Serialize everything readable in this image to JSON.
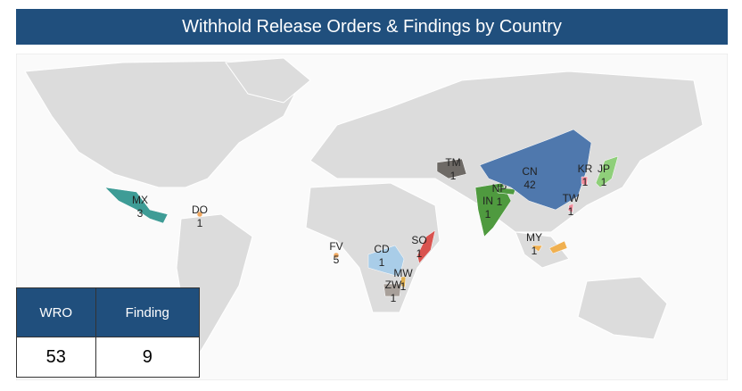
{
  "title": "Withhold Release Orders & Findings by Country",
  "countries": [
    {
      "code": "MX",
      "count": 3,
      "color": "#3e9c96"
    },
    {
      "code": "DO",
      "count": 1,
      "color": "#f0a860"
    },
    {
      "code": "FV",
      "count": 5,
      "color": "#f0a860"
    },
    {
      "code": "CD",
      "count": 1,
      "color": "#a9cde8"
    },
    {
      "code": "MW",
      "count": 1,
      "color": "#e0b050"
    },
    {
      "code": "ZW",
      "count": 1,
      "color": "#a8a09a"
    },
    {
      "code": "SO",
      "count": 1,
      "color": "#d9534f"
    },
    {
      "code": "TM",
      "count": 1,
      "color": "#6e6a66"
    },
    {
      "code": "IN",
      "count": 1,
      "color": "#4f9a3f"
    },
    {
      "code": "NP",
      "count": 1,
      "color": "#4f9a3f"
    },
    {
      "code": "CN",
      "count": 42,
      "color": "#4f78ad"
    },
    {
      "code": "KR",
      "count": 1,
      "color": "#f08a9a"
    },
    {
      "code": "JP",
      "count": 1,
      "color": "#8fcf7a"
    },
    {
      "code": "TW",
      "count": 1,
      "color": "#f08a9a"
    },
    {
      "code": "MY",
      "count": 1,
      "color": "#f0b050"
    }
  ],
  "table": {
    "headers": [
      "WRO",
      "Finding"
    ],
    "rows": [
      [
        53,
        9
      ]
    ]
  }
}
